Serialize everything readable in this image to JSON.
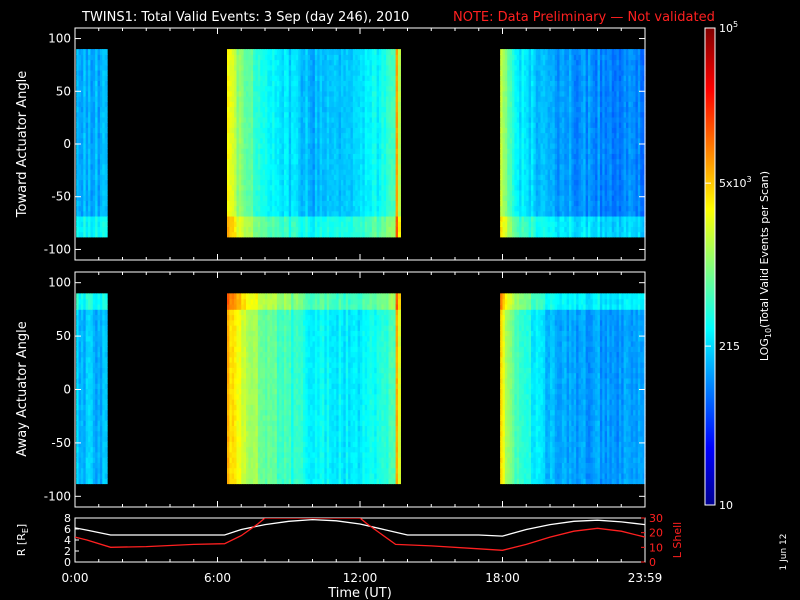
{
  "title": {
    "main": "TWINS1: Total Valid Events:  3 Sep (day 246), 2010",
    "note": "NOTE: Data Preliminary — Not validated",
    "note_color": "#ff2020"
  },
  "side_date": "1 Jun 12",
  "colorbar": {
    "label_parts": [
      "LOG",
      "10",
      "(Total Valid Events per Scan)"
    ],
    "ticks": [
      {
        "text": "10",
        "value": 10
      },
      {
        "text": "215",
        "value": 215
      },
      {
        "text": "5x10",
        "sup": "3",
        "value": 5000
      },
      {
        "text": "10",
        "sup": "5",
        "value": 100000
      }
    ],
    "scale": "log",
    "range": [
      10,
      100000
    ],
    "colormap": "jet"
  },
  "chart_data": [
    {
      "type": "heatmap",
      "ylabel": "Toward Actuator Angle",
      "ylim": [
        -110,
        110
      ],
      "yticks": [
        100,
        50,
        0,
        -50,
        -100
      ],
      "data_angle_range": [
        -88,
        90
      ],
      "xlim": [
        0,
        24
      ],
      "data_intervals_hours": [
        [
          0.05,
          1.35
        ],
        [
          6.4,
          13.7
        ],
        [
          17.9,
          24
        ]
      ],
      "level_profile": [
        {
          "t": 0.1,
          "base": 0.3
        },
        {
          "t": 1.3,
          "base": 0.3
        },
        {
          "t": 6.4,
          "base": 0.62
        },
        {
          "t": 7.0,
          "base": 0.5
        },
        {
          "t": 8.0,
          "base": 0.38
        },
        {
          "t": 10.0,
          "base": 0.3
        },
        {
          "t": 12.0,
          "base": 0.32
        },
        {
          "t": 13.5,
          "base": 0.45
        },
        {
          "t": 13.55,
          "base": 0.7
        },
        {
          "t": 13.7,
          "base": 0.5
        },
        {
          "t": 17.9,
          "base": 0.6
        },
        {
          "t": 18.5,
          "base": 0.38
        },
        {
          "t": 20.0,
          "base": 0.28
        },
        {
          "t": 24.0,
          "base": 0.25
        }
      ]
    },
    {
      "type": "heatmap",
      "ylabel": "Away Actuator Angle",
      "ylim": [
        -110,
        110
      ],
      "yticks": [
        100,
        50,
        0,
        -50,
        -100
      ],
      "data_angle_range": [
        -88,
        90
      ],
      "xlim": [
        0,
        24
      ],
      "data_intervals_hours": [
        [
          0.05,
          1.35
        ],
        [
          6.4,
          13.7
        ],
        [
          17.9,
          24
        ]
      ],
      "level_profile": [
        {
          "t": 0.1,
          "base": 0.32
        },
        {
          "t": 1.3,
          "base": 0.3
        },
        {
          "t": 6.4,
          "base": 0.7
        },
        {
          "t": 7.2,
          "base": 0.55
        },
        {
          "t": 8.5,
          "base": 0.45
        },
        {
          "t": 10.0,
          "base": 0.38
        },
        {
          "t": 12.0,
          "base": 0.35
        },
        {
          "t": 13.5,
          "base": 0.45
        },
        {
          "t": 13.55,
          "base": 0.72
        },
        {
          "t": 13.7,
          "base": 0.5
        },
        {
          "t": 17.9,
          "base": 0.65
        },
        {
          "t": 18.5,
          "base": 0.45
        },
        {
          "t": 20.0,
          "base": 0.3
        },
        {
          "t": 24.0,
          "base": 0.27
        }
      ]
    },
    {
      "type": "line",
      "xlabel": "Time (UT)",
      "xtick_labels": [
        "0:00",
        "6:00",
        "12:00",
        "18:00",
        "23:59"
      ],
      "xticks_hours": [
        0,
        6,
        12,
        18,
        24
      ],
      "left_axis": {
        "label": "R [R",
        "label_sub": "E",
        "label_end": "]",
        "ylim": [
          0,
          8
        ],
        "ticks": [
          0,
          2,
          4,
          6,
          8
        ],
        "color": "#ffffff"
      },
      "right_axis": {
        "label": "L Shell",
        "ylim": [
          0,
          30
        ],
        "ticks": [
          0,
          10,
          20,
          30
        ],
        "color": "#ff2020"
      },
      "series": [
        {
          "axis": "left",
          "color": "#ffffff",
          "x": [
            0,
            0.5,
            1.5,
            3,
            5,
            6.3,
            7,
            8,
            9,
            10,
            11,
            12,
            13,
            14,
            15,
            16,
            17,
            18,
            19,
            20,
            21,
            22,
            23,
            24
          ],
          "y": [
            6.2,
            5.8,
            4.9,
            4.9,
            4.9,
            4.9,
            5.9,
            6.8,
            7.4,
            7.7,
            7.5,
            6.9,
            5.9,
            4.9,
            4.9,
            4.9,
            4.9,
            4.7,
            5.9,
            6.8,
            7.4,
            7.6,
            7.3,
            6.8
          ]
        },
        {
          "axis": "right",
          "color": "#ff2020",
          "x": [
            0,
            0.5,
            1.5,
            3,
            5,
            6.3,
            7,
            7.7,
            8.0,
            12.0,
            12.3,
            13.5,
            15,
            17,
            18,
            19,
            20,
            21,
            22,
            23,
            24
          ],
          "y": [
            17,
            15,
            10,
            10.5,
            12,
            12.5,
            18,
            26,
            30,
            30,
            26,
            12,
            11,
            9,
            8,
            12,
            17,
            21,
            23,
            21,
            17
          ]
        }
      ]
    }
  ]
}
